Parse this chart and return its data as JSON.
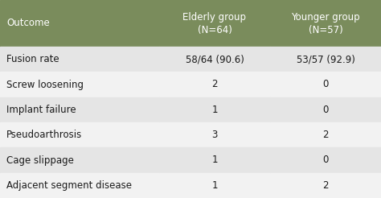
{
  "header_col": "Outcome",
  "col1": "Elderly group\n(N=64)",
  "col2": "Younger group\n(N=57)",
  "rows": [
    [
      "Fusion rate",
      "58/64 (90.6)",
      "53/57 (92.9)"
    ],
    [
      "Screw loosening",
      "2",
      "0"
    ],
    [
      "Implant failure",
      "1",
      "0"
    ],
    [
      "Pseudoarthrosis",
      "3",
      "2"
    ],
    [
      "Cage slippage",
      "1",
      "0"
    ],
    [
      "Adjacent segment disease",
      "1",
      "2"
    ]
  ],
  "header_bg": "#7a8c5c",
  "header_text_color": "#ffffff",
  "row_bg_odd": "#e5e5e5",
  "row_bg_even": "#f2f2f2",
  "row_text_color": "#1a1a1a",
  "font_size_header": 8.5,
  "font_size_body": 8.5
}
